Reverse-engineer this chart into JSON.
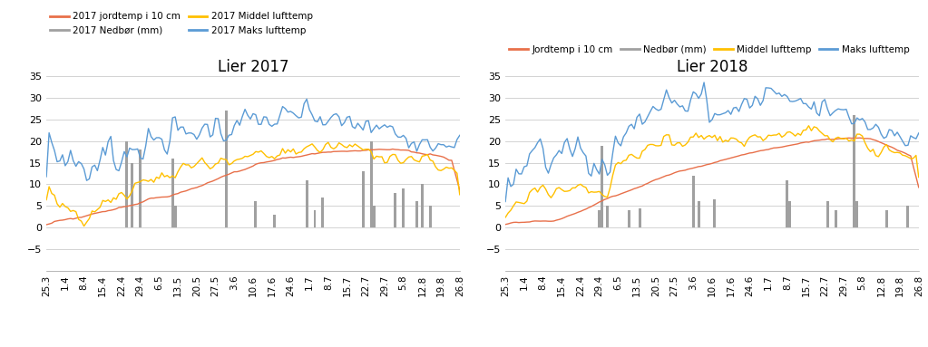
{
  "title_left": "Lier 2017",
  "title_right": "Lier 2018",
  "ylim": [
    -10,
    35
  ],
  "yticks": [
    -5,
    0,
    5,
    10,
    15,
    20,
    25,
    30,
    35
  ],
  "colors": {
    "jordtemp": "#E8704A",
    "nedbor": "#A0A0A0",
    "middel": "#FFC000",
    "maks": "#5B9BD5"
  },
  "legend_left": [
    "2017 jordtemp i 10 cm",
    "2017 Nedbør (mm)",
    "2017 Middel lufttemp",
    "2017 Maks lufttemp"
  ],
  "legend_right": [
    "Jordtemp i 10 cm",
    "Nedbør (mm)",
    "Middel lufttemp",
    "Maks lufttemp"
  ],
  "xtick_labels": [
    "25.3",
    "1.4",
    "8.4",
    "15.4",
    "22.4",
    "29.4",
    "6.5",
    "13.5",
    "20.5",
    "27.5",
    "3.6",
    "10.6",
    "17.6",
    "24.6",
    "1.7",
    "8.7",
    "15.7",
    "22.7",
    "29.7",
    "5.8",
    "12.8",
    "19.8",
    "26.8"
  ]
}
